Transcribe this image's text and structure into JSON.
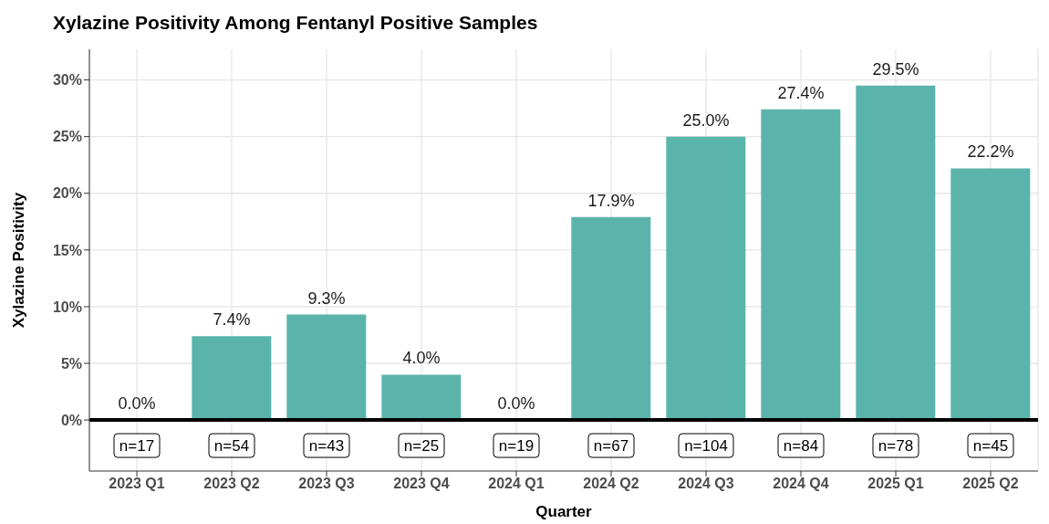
{
  "chart_data": {
    "type": "bar",
    "title": "Xylazine Positivity Among Fentanyl Positive Samples",
    "xlabel": "Quarter",
    "ylabel": "Xylazine Positivity",
    "categories": [
      "2023 Q1",
      "2023 Q2",
      "2023 Q3",
      "2023 Q4",
      "2024 Q1",
      "2024 Q2",
      "2024 Q3",
      "2024 Q4",
      "2025 Q1",
      "2025 Q2"
    ],
    "values": [
      0,
      7.4,
      9.3,
      4.0,
      0,
      17.9,
      25.0,
      27.4,
      29.5,
      22.2
    ],
    "value_labels": [
      "0.0%",
      "7.4%",
      "9.3%",
      "4.0%",
      "0.0%",
      "17.9%",
      "25.0%",
      "27.4%",
      "29.5%",
      "22.2%"
    ],
    "color": "#5ab4ac",
    "ylim": [
      -4.5,
      32.7
    ],
    "yticks": [
      {
        "value": 0,
        "label": "0%"
      },
      {
        "value": 5,
        "label": "5%"
      },
      {
        "value": 10,
        "label": "10%"
      },
      {
        "value": 15,
        "label": "15%"
      },
      {
        "value": 20,
        "label": "20%"
      },
      {
        "value": 25,
        "label": "25%"
      },
      {
        "value": 30,
        "label": "30%"
      }
    ],
    "grid": true,
    "ref_lines": [
      {
        "axis": "y",
        "value": 0,
        "color": "#000000"
      }
    ],
    "annotations": [
      "n=17",
      "n=54",
      "n=43",
      "n=25",
      "n=19",
      "n=67",
      "n=104",
      "n=84",
      "n=78",
      "n=45"
    ]
  }
}
